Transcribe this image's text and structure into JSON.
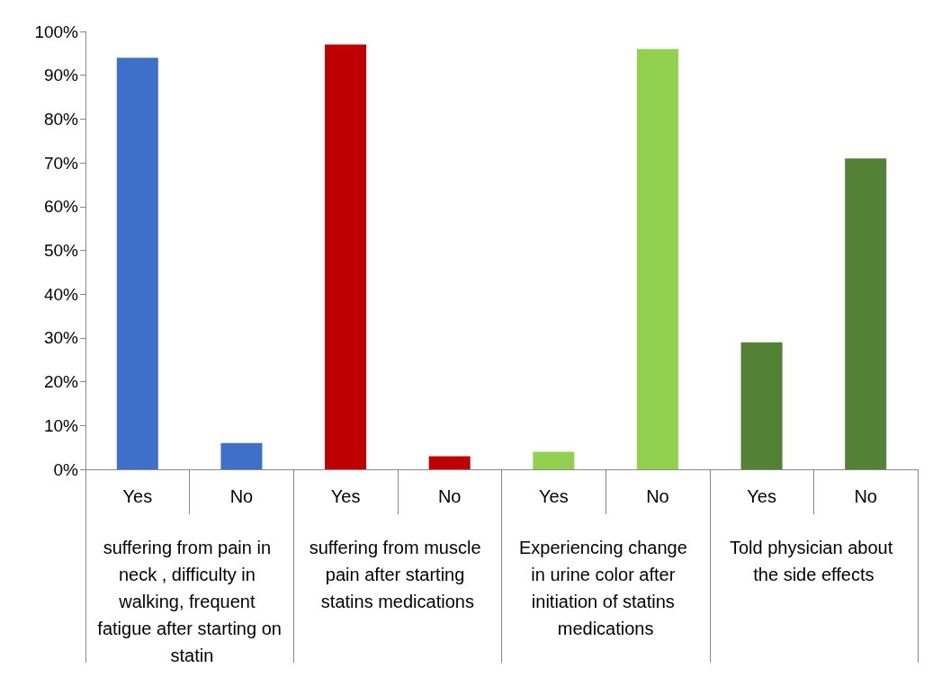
{
  "chart_data": {
    "type": "bar",
    "categories": [
      "Yes",
      "No",
      "Yes",
      "No",
      "Yes",
      "No",
      "Yes",
      "No"
    ],
    "values": [
      94,
      6,
      97,
      3,
      4,
      96,
      29,
      71
    ],
    "colors": [
      "#3f70c9",
      "#3f70c9",
      "#c00000",
      "#c00000",
      "#92d050",
      "#92d050",
      "#538135",
      "#538135"
    ],
    "annotations": [
      "suffering from pain in neck , difficulty in walking, frequent fatigue after starting on statin",
      "suffering from muscle pain after starting statins medications",
      "Experiencing change in urine color after initiation of statins medications",
      "Told physician about the side effects"
    ],
    "ylim": [
      0,
      100
    ],
    "yticks": [
      {
        "value": 0,
        "label": "0%"
      },
      {
        "value": 10,
        "label": "10%"
      },
      {
        "value": 20,
        "label": "20%"
      },
      {
        "value": 30,
        "label": "30%"
      },
      {
        "value": 40,
        "label": "40%"
      },
      {
        "value": 50,
        "label": "50%"
      },
      {
        "value": 60,
        "label": "60%"
      },
      {
        "value": 70,
        "label": "70%"
      },
      {
        "value": 80,
        "label": "80%"
      },
      {
        "value": 90,
        "label": "90%"
      },
      {
        "value": 100,
        "label": "100%"
      }
    ],
    "grid": false
  }
}
